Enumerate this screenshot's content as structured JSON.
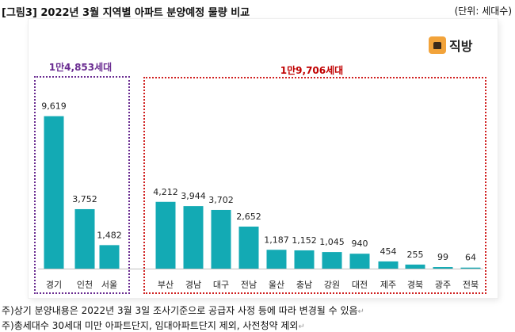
{
  "header": {
    "title": "[그림3] 2022년 3월 지역별 아파트 분양예정 물량 비교",
    "unit": "(단위: 세대수)"
  },
  "logo": {
    "text": "직방",
    "icon": "house-chat-logo-icon"
  },
  "groups": {
    "capital_total": "1만4,853세대",
    "other_total": "1만9,706세대"
  },
  "colors": {
    "bar": "#13aab4",
    "capital_box": "#6a2c91",
    "other_box": "#d02020"
  },
  "notes": [
    "주)상기 분양내용은 2022년 3월 3일 조사기준으로 공급자 사정 등에 따라 변경될 수 있음",
    "주)총세대수 30세대 미만 아파트단지, 임대아파트단지 제외, 사전청약 제외"
  ],
  "chart_data": {
    "type": "bar",
    "title": "",
    "xlabel": "",
    "ylabel": "",
    "categories": [
      "경기",
      "인천",
      "서울",
      "부산",
      "경남",
      "대구",
      "전남",
      "울산",
      "충남",
      "강원",
      "대전",
      "제주",
      "경북",
      "광주",
      "전북"
    ],
    "values": [
      9619,
      3752,
      1482,
      4212,
      3944,
      3702,
      2652,
      1187,
      1152,
      1045,
      940,
      454,
      255,
      99,
      64
    ],
    "value_labels": [
      "9,619",
      "3,752",
      "1,482",
      "4,212",
      "3,944",
      "3,702",
      "2,652",
      "1,187",
      "1,152",
      "1,045",
      "940",
      "454",
      "255",
      "99",
      "64"
    ],
    "ylim": [
      0,
      10000
    ],
    "grid": false
  }
}
